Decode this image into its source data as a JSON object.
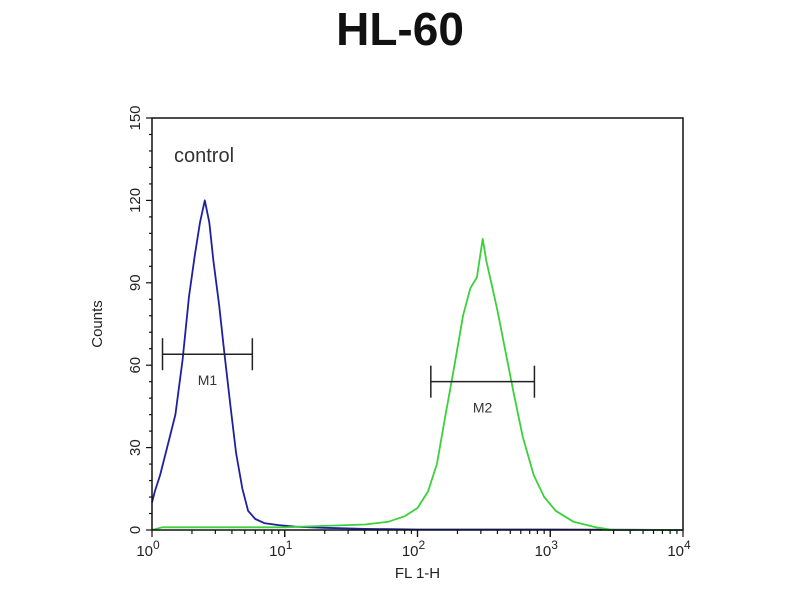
{
  "chart_data": {
    "type": "line",
    "title": "HL-60",
    "xlabel": "FL 1-H",
    "ylabel": "Counts",
    "x_scale": "log",
    "xlim": [
      1,
      10000
    ],
    "ylim": [
      0,
      150
    ],
    "x_ticks": [
      {
        "base": "10",
        "exp": "0"
      },
      {
        "base": "10",
        "exp": "1"
      },
      {
        "base": "10",
        "exp": "2"
      },
      {
        "base": "10",
        "exp": "3"
      },
      {
        "base": "10",
        "exp": "4"
      }
    ],
    "y_ticks": [
      "0",
      "30",
      "60",
      "90",
      "120",
      "150"
    ],
    "annotation": "control",
    "grid": false,
    "series": [
      {
        "color": "#1f1fa0",
        "label": "control",
        "x": [
          1,
          1.05,
          1.15,
          1.3,
          1.5,
          1.7,
          1.9,
          2.1,
          2.3,
          2.5,
          2.7,
          2.9,
          3.2,
          3.5,
          3.9,
          4.3,
          4.8,
          5.3,
          6,
          7,
          9,
          12,
          20,
          40,
          100,
          1000,
          10000
        ],
        "y": [
          10,
          14,
          20,
          30,
          42,
          62,
          85,
          100,
          112,
          120,
          112,
          98,
          82,
          65,
          45,
          28,
          15,
          7,
          4,
          2.5,
          1.8,
          1.2,
          0.8,
          0.4,
          0.2,
          0.2,
          0
        ]
      },
      {
        "color": "#3ad13a",
        "label": "",
        "x": [
          1,
          1.2,
          3,
          10,
          20,
          40,
          60,
          80,
          100,
          120,
          140,
          160,
          190,
          220,
          250,
          280,
          310,
          330,
          360,
          400,
          460,
          530,
          620,
          750,
          900,
          1100,
          1500,
          2200,
          3000,
          10000
        ],
        "y": [
          0,
          1,
          1,
          1,
          1.5,
          2,
          3,
          5,
          8,
          14,
          24,
          40,
          60,
          78,
          88,
          92,
          106,
          98,
          90,
          80,
          65,
          50,
          34,
          20,
          12,
          7,
          3,
          1,
          0,
          0
        ]
      }
    ],
    "markers": [
      {
        "label": "M1",
        "x_range": [
          1.2,
          5.7
        ],
        "y": 64
      },
      {
        "label": "M2",
        "x_range": [
          126,
          760
        ],
        "y": 54
      }
    ]
  }
}
